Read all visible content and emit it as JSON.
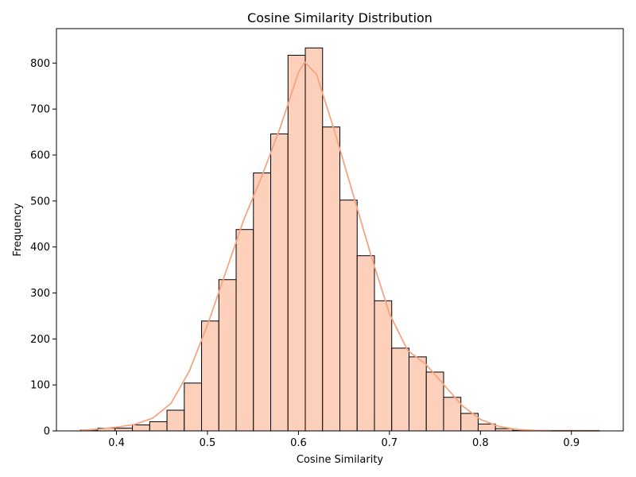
{
  "chart_data": {
    "type": "bar",
    "title": "Cosine Similarity Distribution",
    "xlabel": "Cosine Similarity",
    "ylabel": "Frequency",
    "xlim": [
      0.334,
      0.957
    ],
    "ylim": [
      0,
      875
    ],
    "xticks": [
      0.4,
      0.5,
      0.6,
      0.7,
      0.8,
      0.9
    ],
    "xtick_labels": [
      "0.4",
      "0.5",
      "0.6",
      "0.7",
      "0.8",
      "0.9"
    ],
    "yticks": [
      0,
      100,
      200,
      300,
      400,
      500,
      600,
      700,
      800
    ],
    "ytick_labels": [
      "0",
      "100",
      "200",
      "300",
      "400",
      "500",
      "600",
      "700",
      "800"
    ],
    "bin_edges": [
      0.3605,
      0.3795,
      0.3985,
      0.4175,
      0.4365,
      0.4555,
      0.4745,
      0.4935,
      0.5125,
      0.5315,
      0.5505,
      0.5695,
      0.5885,
      0.6075,
      0.6265,
      0.6455,
      0.6645,
      0.6835,
      0.7025,
      0.7215,
      0.7405,
      0.7595,
      0.7785,
      0.7975,
      0.8165,
      0.8355,
      0.8545,
      0.8735,
      0.8925,
      0.9115,
      0.9305
    ],
    "values": [
      2,
      6,
      6,
      13,
      20,
      45,
      104,
      239,
      329,
      438,
      561,
      646,
      817,
      833,
      661,
      502,
      381,
      283,
      180,
      161,
      128,
      73,
      38,
      15,
      5,
      1,
      1,
      1,
      1,
      1
    ],
    "bar_color": "#fdd0bc",
    "edge_color": "#000000",
    "kde": {
      "color": "#f4a582",
      "x": [
        0.3605,
        0.38,
        0.4,
        0.42,
        0.44,
        0.46,
        0.48,
        0.5,
        0.52,
        0.54,
        0.56,
        0.58,
        0.6,
        0.607,
        0.62,
        0.64,
        0.66,
        0.68,
        0.7,
        0.72,
        0.74,
        0.76,
        0.78,
        0.8,
        0.82,
        0.84,
        0.86,
        0.88,
        0.9,
        0.9305
      ],
      "y": [
        1,
        4,
        8,
        14,
        28,
        60,
        130,
        230,
        345,
        460,
        555,
        660,
        780,
        802,
        775,
        650,
        515,
        380,
        255,
        175,
        145,
        100,
        55,
        25,
        10,
        3,
        1,
        0,
        0,
        0
      ]
    },
    "grid": false,
    "legend": "none"
  }
}
